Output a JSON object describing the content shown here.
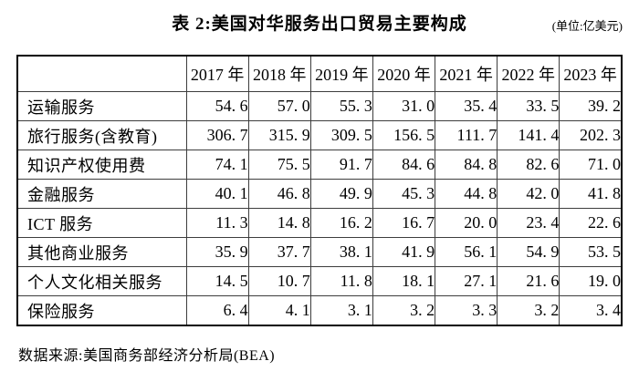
{
  "title": "表 2:美国对华服务出口贸易主要构成",
  "unit_note": "(单位:亿美元)",
  "source_note": "数据来源:美国商务部经济分析局(BEA)",
  "colors": {
    "background": "#ffffff",
    "text": "#000000",
    "border_outer": "#000000",
    "border_inner": "#3d3d3d"
  },
  "table": {
    "corner_label": "",
    "col_headers": [
      "2017 年",
      "2018 年",
      "2019 年",
      "2020 年",
      "2021 年",
      "2022 年",
      "2023 年"
    ],
    "rows": [
      {
        "label": "运输服务",
        "values": [
          "54. 6",
          "57. 0",
          "55. 3",
          "31. 0",
          "35. 4",
          "33. 5",
          "39. 2"
        ]
      },
      {
        "label": "旅行服务(含教育)",
        "values": [
          "306. 7",
          "315. 9",
          "309. 5",
          "156. 5",
          "111. 7",
          "141. 4",
          "202. 3"
        ]
      },
      {
        "label": "知识产权使用费",
        "values": [
          "74. 1",
          "75. 5",
          "91. 7",
          "84. 6",
          "84. 8",
          "82. 6",
          "71. 0"
        ]
      },
      {
        "label": "金融服务",
        "values": [
          "40. 1",
          "46. 8",
          "49. 9",
          "45. 3",
          "44. 8",
          "42. 0",
          "41. 8"
        ]
      },
      {
        "label": "ICT 服务",
        "values": [
          "11. 3",
          "14. 8",
          "16. 2",
          "16. 7",
          "20. 0",
          "23. 4",
          "22. 6"
        ]
      },
      {
        "label": "其他商业服务",
        "values": [
          "35. 9",
          "37. 7",
          "38. 1",
          "41. 9",
          "56. 1",
          "54. 9",
          "53. 5"
        ]
      },
      {
        "label": "个人文化相关服务",
        "values": [
          "14. 5",
          "10. 7",
          "11. 8",
          "18. 1",
          "27. 1",
          "21. 6",
          "19. 0"
        ]
      },
      {
        "label": "保险服务",
        "values": [
          "6. 4",
          "4. 1",
          "3. 1",
          "3. 2",
          "3. 3",
          "3. 2",
          "3. 4"
        ]
      }
    ]
  },
  "chart_data": {
    "type": "table",
    "title": "表 2:美国对华服务出口贸易主要构成",
    "unit": "亿美元",
    "categories": [
      "2017",
      "2018",
      "2019",
      "2020",
      "2021",
      "2022",
      "2023"
    ],
    "series": [
      {
        "name": "运输服务",
        "values": [
          54.6,
          57.0,
          55.3,
          31.0,
          35.4,
          33.5,
          39.2
        ]
      },
      {
        "name": "旅行服务(含教育)",
        "values": [
          306.7,
          315.9,
          309.5,
          156.5,
          111.7,
          141.4,
          202.3
        ]
      },
      {
        "name": "知识产权使用费",
        "values": [
          74.1,
          75.5,
          91.7,
          84.6,
          84.8,
          82.6,
          71.0
        ]
      },
      {
        "name": "金融服务",
        "values": [
          40.1,
          46.8,
          49.9,
          45.3,
          44.8,
          42.0,
          41.8
        ]
      },
      {
        "name": "ICT 服务",
        "values": [
          11.3,
          14.8,
          16.2,
          16.7,
          20.0,
          23.4,
          22.6
        ]
      },
      {
        "name": "其他商业服务",
        "values": [
          35.9,
          37.7,
          38.1,
          41.9,
          56.1,
          54.9,
          53.5
        ]
      },
      {
        "name": "个人文化相关服务",
        "values": [
          14.5,
          10.7,
          11.8,
          18.1,
          27.1,
          21.6,
          19.0
        ]
      },
      {
        "name": "保险服务",
        "values": [
          6.4,
          4.1,
          3.1,
          3.2,
          3.3,
          3.2,
          3.4
        ]
      }
    ],
    "source": "美国商务部经济分析局(BEA)"
  }
}
